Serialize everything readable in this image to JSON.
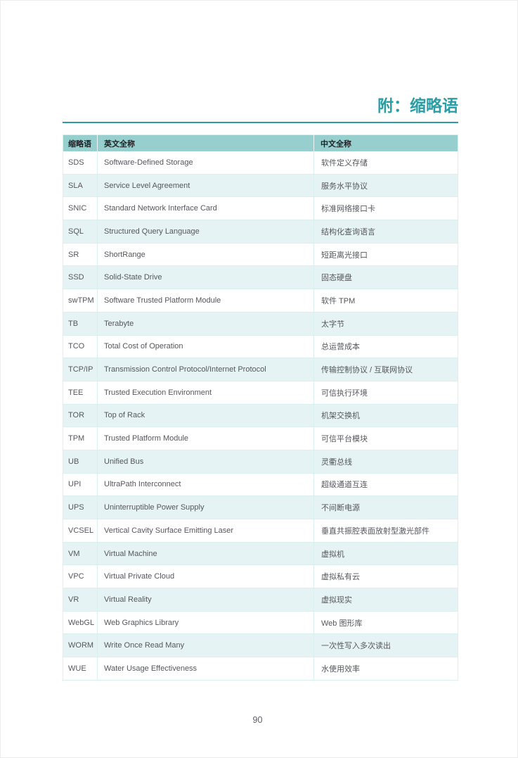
{
  "page": {
    "title": "附：缩略语",
    "number": "90"
  },
  "colors": {
    "accent_teal": "#2a9da5",
    "rule_teal": "#2e9aa2",
    "header_bg": "#97cfcf",
    "stripe_bg": "#e6f3f4",
    "grid_line": "#dcefef",
    "body_text": "#55575c",
    "header_text": "#1f2023"
  },
  "table": {
    "headers": [
      "缩略语",
      "英文全称",
      "中文全称"
    ],
    "rows": [
      {
        "abbr": "SDS",
        "en": "Software-Defined Storage",
        "zh": "软件定义存储"
      },
      {
        "abbr": "SLA",
        "en": "Service Level Agreement",
        "zh": "服务水平协议"
      },
      {
        "abbr": "SNIC",
        "en": "Standard Network Interface Card",
        "zh": "标准网络接口卡"
      },
      {
        "abbr": "SQL",
        "en": "Structured Query Language",
        "zh": "结构化查询语言"
      },
      {
        "abbr": "SR",
        "en": "ShortRange",
        "zh": "短距离光接口"
      },
      {
        "abbr": "SSD",
        "en": "Solid-State Drive",
        "zh": "固态硬盘"
      },
      {
        "abbr": "swTPM",
        "en": "Software Trusted Platform Module",
        "zh": "软件 TPM"
      },
      {
        "abbr": "TB",
        "en": "Terabyte",
        "zh": "太字节"
      },
      {
        "abbr": "TCO",
        "en": "Total Cost of Operation",
        "zh": "总运营成本"
      },
      {
        "abbr": "TCP/IP",
        "en": "Transmission Control Protocol/Internet Protocol",
        "zh": "传输控制协议 / 互联网协议"
      },
      {
        "abbr": "TEE",
        "en": "Trusted Execution Environment",
        "zh": "可信执行环境"
      },
      {
        "abbr": "TOR",
        "en": "Top of Rack",
        "zh": "机架交换机"
      },
      {
        "abbr": "TPM",
        "en": "Trusted Platform Module",
        "zh": "可信平台模块"
      },
      {
        "abbr": "UB",
        "en": "Unified Bus",
        "zh": "灵衢总线"
      },
      {
        "abbr": "UPI",
        "en": "UltraPath Interconnect",
        "zh": "超级通道互连"
      },
      {
        "abbr": "UPS",
        "en": "Uninterruptible Power Supply",
        "zh": "不间断电源"
      },
      {
        "abbr": "VCSEL",
        "en": "Vertical Cavity Surface Emitting Laser",
        "zh": "垂直共振腔表面放射型激光部件"
      },
      {
        "abbr": "VM",
        "en": "Virtual Machine",
        "zh": "虚拟机"
      },
      {
        "abbr": "VPC",
        "en": "Virtual Private Cloud",
        "zh": "虚拟私有云"
      },
      {
        "abbr": "VR",
        "en": "Virtual Reality",
        "zh": "虚拟现实"
      },
      {
        "abbr": "WebGL",
        "en": "Web Graphics Library",
        "zh": "Web 图形库"
      },
      {
        "abbr": "WORM",
        "en": "Write Once Read Many",
        "zh": "一次性写入多次读出"
      },
      {
        "abbr": "WUE",
        "en": "Water Usage Effectiveness",
        "zh": "水使用效率"
      }
    ]
  }
}
